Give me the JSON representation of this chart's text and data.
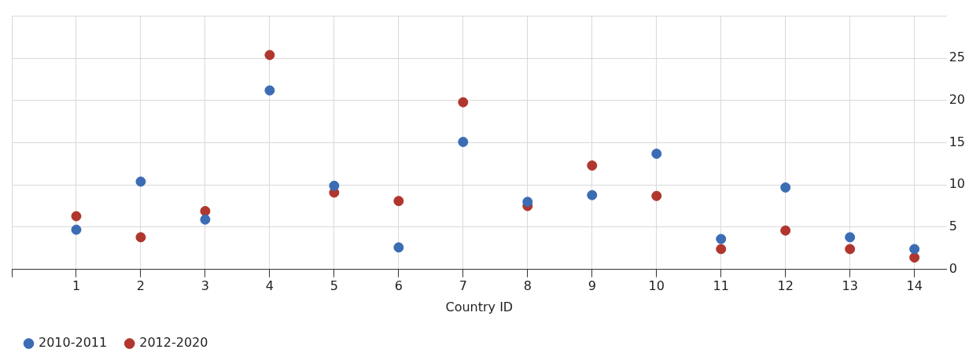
{
  "chart_data": {
    "type": "scatter",
    "xlabel": "Country ID",
    "x": [
      1,
      2,
      3,
      4,
      5,
      6,
      7,
      8,
      9,
      10,
      11,
      12,
      13,
      14
    ],
    "series": [
      {
        "name": "2010-2011",
        "color": "#3b6cb4",
        "values": [
          4.7,
          10.4,
          5.9,
          21.2,
          9.9,
          2.6,
          15.1,
          8.0,
          8.8,
          13.7,
          3.6,
          9.7,
          3.8,
          2.4
        ]
      },
      {
        "name": "2012-2020",
        "color": "#b0362e",
        "values": [
          6.3,
          3.8,
          6.9,
          25.4,
          9.1,
          8.1,
          19.8,
          7.5,
          12.3,
          8.7,
          2.4,
          4.6,
          2.4,
          1.4
        ]
      }
    ],
    "xlim": [
      0,
      14.5
    ],
    "xticks": [
      {
        "value": 0,
        "label": null
      },
      1,
      2,
      3,
      4,
      5,
      6,
      7,
      8,
      9,
      10,
      11,
      12,
      13,
      14
    ],
    "ylim": [
      0,
      30
    ],
    "yticks": [
      0,
      5,
      10,
      15,
      20,
      25,
      {
        "value": 30,
        "label": null
      }
    ],
    "grid": true,
    "legend": "bottom left",
    "marker": "circle"
  }
}
